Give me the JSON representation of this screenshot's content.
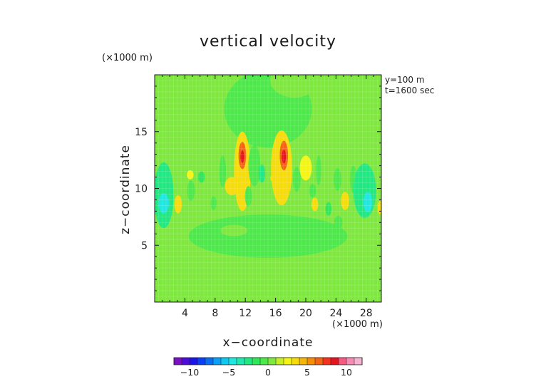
{
  "chart_data": {
    "type": "heatmap",
    "title": "vertical velocity",
    "xlabel": "x−coordinate",
    "ylabel": "z−coordinate",
    "x_unit": "(×1000 m)",
    "y_unit": "(×1000 m)",
    "annotations": [
      "y=100 m",
      "t=1600 sec"
    ],
    "xlim": [
      0,
      30
    ],
    "ylim": [
      0,
      20
    ],
    "xticks": [
      4,
      8,
      12,
      16,
      20,
      24,
      28
    ],
    "xtick_labels": [
      "4",
      "8",
      "12",
      "16",
      "20",
      "24",
      "28"
    ],
    "yticks": [
      5,
      10,
      15
    ],
    "ytick_labels": [
      "5",
      "10",
      "15"
    ],
    "grid": true,
    "background_level": 0.5,
    "colorbar": {
      "range": [
        -12,
        12
      ],
      "step": 1,
      "ticks": [
        -10,
        -5,
        0,
        5,
        10
      ],
      "tick_labels": [
        "−10",
        "−5",
        "0",
        "5",
        "10"
      ],
      "colors": [
        "#7a0fc4",
        "#4d0dd6",
        "#1a14e8",
        "#0a3ff2",
        "#0a6ef5",
        "#0d9ef5",
        "#0fc8f2",
        "#22e6e0",
        "#1fe8b0",
        "#22e882",
        "#2ee85a",
        "#4de84a",
        "#7fe83f",
        "#c8ee28",
        "#f5f514",
        "#f5dc0a",
        "#f5b50a",
        "#f58c0a",
        "#f56414",
        "#f5321e",
        "#e6141e",
        "#f55a82",
        "#f58cb4",
        "#f5b4d2"
      ]
    },
    "fields": [
      {
        "x": 15,
        "y": 17,
        "rx": 5.8,
        "ry": 3.4,
        "value": -0.4
      },
      {
        "x": 18.5,
        "y": 19.5,
        "rx": 3.2,
        "ry": 1.5,
        "value": 0.6
      },
      {
        "x": 15,
        "y": 2.5,
        "rx": 4.3,
        "ry": 3.6,
        "value": 0.6
      },
      {
        "x": 15,
        "y": 5.8,
        "rx": 10.5,
        "ry": 1.9,
        "value": -0.4
      },
      {
        "x": 10.5,
        "y": 6.3,
        "rx": 1.8,
        "ry": 0.5,
        "value": 0.6
      },
      {
        "x": 17.5,
        "y": 11.2,
        "rx": 5.3,
        "ry": 1.9,
        "value": 0.6
      },
      {
        "x": 2,
        "y": 1.8,
        "rx": 2.3,
        "ry": 1.8,
        "value": 0.6
      },
      {
        "x": 27.5,
        "y": 2.5,
        "rx": 2.6,
        "ry": 2.2,
        "value": 0.6
      }
    ],
    "cells": [
      {
        "x": 1.2,
        "y": 9.4,
        "rx": 1.3,
        "ry": 2.9,
        "value": -2.5
      },
      {
        "x": 1.2,
        "y": 8.7,
        "rx": 0.7,
        "ry": 0.9,
        "value": -4.5
      },
      {
        "x": 3.1,
        "y": 8.6,
        "rx": 0.5,
        "ry": 0.8,
        "value": 3
      },
      {
        "x": 4.7,
        "y": 11.2,
        "rx": 0.45,
        "ry": 0.4,
        "value": 2.8
      },
      {
        "x": 4.8,
        "y": 9.8,
        "rx": 0.5,
        "ry": 0.9,
        "value": -0.5
      },
      {
        "x": 6.2,
        "y": 11,
        "rx": 0.45,
        "ry": 0.5,
        "value": -2
      },
      {
        "x": 7.5,
        "y": 10.8,
        "rx": 0.65,
        "ry": 1.1,
        "value": 0.6
      },
      {
        "x": 7.8,
        "y": 8.7,
        "rx": 0.4,
        "ry": 0.6,
        "value": -1
      },
      {
        "x": 9,
        "y": 11.5,
        "rx": 0.45,
        "ry": 1.4,
        "value": -0.6
      },
      {
        "x": 10.2,
        "y": 10.2,
        "rx": 0.9,
        "ry": 0.8,
        "value": 3
      },
      {
        "x": 11.6,
        "y": 11.5,
        "rx": 1.1,
        "ry": 3.5,
        "value": 3
      },
      {
        "x": 11.6,
        "y": 12.9,
        "rx": 0.5,
        "ry": 1.2,
        "value": 6.5
      },
      {
        "x": 11.6,
        "y": 12.8,
        "rx": 0.25,
        "ry": 0.55,
        "value": 8.5
      },
      {
        "x": 12.4,
        "y": 9.3,
        "rx": 0.45,
        "ry": 0.9,
        "value": -0.6
      },
      {
        "x": 13.2,
        "y": 12,
        "rx": 0.8,
        "ry": 1.8,
        "value": -0.6
      },
      {
        "x": 14.2,
        "y": 11.3,
        "rx": 0.45,
        "ry": 0.8,
        "value": -2.5
      },
      {
        "x": 15.5,
        "y": 10.9,
        "rx": 0.2,
        "ry": 0.25,
        "value": 3
      },
      {
        "x": 16.8,
        "y": 11.8,
        "rx": 1.4,
        "ry": 3.3,
        "value": 3
      },
      {
        "x": 17.1,
        "y": 12.9,
        "rx": 0.55,
        "ry": 1.3,
        "value": 6.5
      },
      {
        "x": 17.1,
        "y": 12.8,
        "rx": 0.28,
        "ry": 0.6,
        "value": 8.5
      },
      {
        "x": 18.8,
        "y": 10.8,
        "rx": 0.5,
        "ry": 1.1,
        "value": -0.6
      },
      {
        "x": 20,
        "y": 11.8,
        "rx": 0.8,
        "ry": 1.1,
        "value": 2.8
      },
      {
        "x": 20.9,
        "y": 9.8,
        "rx": 0.45,
        "ry": 0.6,
        "value": -0.6
      },
      {
        "x": 21.7,
        "y": 11.6,
        "rx": 0.35,
        "ry": 1.3,
        "value": -0.5
      },
      {
        "x": 21.2,
        "y": 8.6,
        "rx": 0.45,
        "ry": 0.6,
        "value": 3
      },
      {
        "x": 23,
        "y": 8.2,
        "rx": 0.4,
        "ry": 0.6,
        "value": -2
      },
      {
        "x": 24.2,
        "y": 10.8,
        "rx": 0.5,
        "ry": 1,
        "value": -0.6
      },
      {
        "x": 24.3,
        "y": 7,
        "rx": 0.55,
        "ry": 0.6,
        "value": -0.5
      },
      {
        "x": 25.2,
        "y": 8.9,
        "rx": 0.55,
        "ry": 0.8,
        "value": 3
      },
      {
        "x": 26.3,
        "y": 10.8,
        "rx": 0.45,
        "ry": 1.2,
        "value": -0.5
      },
      {
        "x": 26.3,
        "y": 8.4,
        "rx": 0.35,
        "ry": 0.5,
        "value": 0.6
      },
      {
        "x": 27.8,
        "y": 9.8,
        "rx": 1.5,
        "ry": 2.4,
        "value": -2.5
      },
      {
        "x": 28.2,
        "y": 8.8,
        "rx": 0.6,
        "ry": 0.9,
        "value": -4.5
      },
      {
        "x": 29.8,
        "y": 8.3,
        "rx": 0.3,
        "ry": 0.6,
        "value": 3
      }
    ]
  }
}
